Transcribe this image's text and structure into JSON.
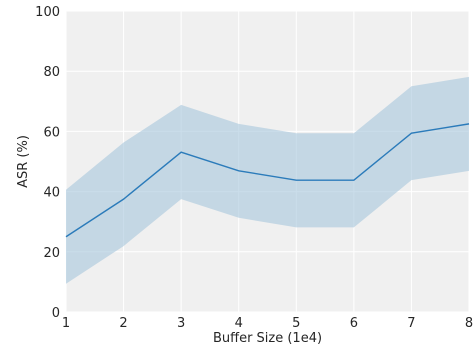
{
  "chart_data": {
    "type": "line",
    "title": "",
    "xlabel": "Buffer Size (1e4)",
    "ylabel": "ASR (%)",
    "x": [
      1,
      2,
      3,
      4,
      5,
      6,
      7,
      8
    ],
    "xlim": [
      1,
      8
    ],
    "ylim": [
      0,
      100
    ],
    "xticks": [
      "1",
      "2",
      "3",
      "4",
      "5",
      "6",
      "7",
      "8"
    ],
    "yticks": [
      "0",
      "20",
      "40",
      "60",
      "80",
      "100"
    ],
    "grid": true,
    "series": [
      {
        "values": [
          25.0,
          37.5,
          53.1,
          46.9,
          43.8,
          43.8,
          59.4,
          62.5
        ],
        "lower": [
          9.4,
          21.9,
          37.5,
          31.3,
          28.1,
          28.1,
          43.8,
          46.9
        ],
        "upper": [
          40.6,
          56.3,
          68.8,
          62.5,
          59.4,
          59.4,
          75.0,
          78.1
        ],
        "color": "#2b7bba",
        "band_color": "#a6c6dc"
      }
    ],
    "background": "#f0f0f0"
  }
}
